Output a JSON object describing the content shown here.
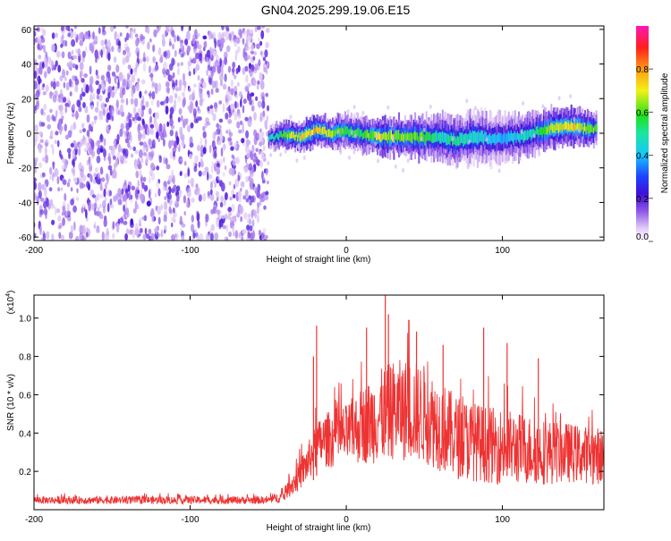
{
  "title": "GN04.2025.299.19.06.E15",
  "chart_data": [
    {
      "type": "heatmap",
      "title": "GN04.2025.299.19.06.E15",
      "xlabel": "Height of straight line (km)",
      "ylabel": "Frequency (Hz)",
      "xlim": [
        -200,
        165
      ],
      "ylim": [
        -62,
        62
      ],
      "xticks": [
        -200,
        -100,
        0,
        100
      ],
      "yticks": [
        60,
        40,
        20,
        0,
        -20,
        -40,
        -60
      ],
      "colorbar": {
        "label": "Normalized spectral amplitude",
        "range": [
          0,
          1
        ],
        "ticks": [
          "0.0",
          "0.2",
          "0.4",
          "0.6",
          "0.8"
        ]
      },
      "noise_region": {
        "x": [
          -200,
          -50
        ],
        "y": [
          -60,
          60
        ],
        "amplitude": [
          0.0,
          0.2
        ]
      },
      "signal_ridge": {
        "x": [
          -50,
          -40,
          -30,
          -20,
          -10,
          0,
          10,
          20,
          30,
          40,
          50,
          60,
          70,
          80,
          90,
          100,
          110,
          120,
          130,
          140,
          150,
          160
        ],
        "y": [
          -3,
          -1,
          -2,
          2,
          0,
          1,
          -1,
          -2,
          -2,
          -2,
          -3,
          -2,
          -4,
          -2,
          -3,
          -3,
          -2,
          0,
          3,
          4,
          3,
          2
        ],
        "peak_amplitude": [
          0.5,
          0.7,
          0.85,
          0.9,
          0.75,
          0.7,
          0.65,
          0.8,
          0.75,
          0.7,
          0.7,
          0.55,
          0.6,
          0.55,
          0.5,
          0.45,
          0.5,
          0.6,
          0.75,
          0.85,
          0.8,
          0.7
        ],
        "width_hz": [
          6,
          8,
          8,
          9,
          9,
          10,
          10,
          10,
          11,
          11,
          12,
          13,
          14,
          15,
          14,
          14,
          13,
          12,
          11,
          10,
          10,
          9
        ]
      }
    },
    {
      "type": "line",
      "title": "",
      "xlabel": "Height of straight line (km)",
      "ylabel": "SNR (10 * v/v)",
      "yscale_label": "(x10",
      "yscale_exp": "4",
      "yscale_close": ")",
      "xlim": [
        -200,
        165
      ],
      "ylim": [
        0,
        1.12
      ],
      "xticks": [
        -200,
        -100,
        0,
        100
      ],
      "yticks": [
        0.2,
        0.4,
        0.6,
        0.8,
        1.0
      ],
      "color": "#ee3333",
      "series": [
        {
          "name": "SNR",
          "x": [
            -200,
            -150,
            -100,
            -50,
            -40,
            -38,
            -35,
            -30,
            -25,
            -20,
            -15,
            -10,
            -5,
            0,
            10,
            20,
            30,
            40,
            50,
            60,
            70,
            80,
            90,
            100,
            110,
            120,
            130,
            140,
            150,
            165
          ],
          "center": [
            0.05,
            0.05,
            0.05,
            0.05,
            0.07,
            0.1,
            0.13,
            0.18,
            0.24,
            0.32,
            0.36,
            0.37,
            0.38,
            0.39,
            0.44,
            0.48,
            0.52,
            0.52,
            0.5,
            0.44,
            0.38,
            0.36,
            0.34,
            0.33,
            0.32,
            0.31,
            0.3,
            0.3,
            0.29,
            0.28
          ],
          "spread": [
            0.02,
            0.02,
            0.02,
            0.02,
            0.03,
            0.04,
            0.06,
            0.08,
            0.1,
            0.12,
            0.14,
            0.15,
            0.16,
            0.16,
            0.2,
            0.24,
            0.26,
            0.27,
            0.26,
            0.24,
            0.22,
            0.21,
            0.2,
            0.2,
            0.19,
            0.18,
            0.17,
            0.16,
            0.15,
            0.15
          ]
        }
      ],
      "spikes": [
        {
          "x": -19,
          "value": 0.96
        },
        {
          "x": -21,
          "value": 0.8
        },
        {
          "x": 25,
          "value": 1.12
        },
        {
          "x": 27,
          "value": 1.02
        },
        {
          "x": 13,
          "value": 0.95
        },
        {
          "x": 40,
          "value": 0.99
        },
        {
          "x": 45,
          "value": 0.93
        },
        {
          "x": 62,
          "value": 0.86
        },
        {
          "x": 88,
          "value": 0.95
        },
        {
          "x": 103,
          "value": 0.87
        },
        {
          "x": 123,
          "value": 0.79
        }
      ]
    }
  ]
}
